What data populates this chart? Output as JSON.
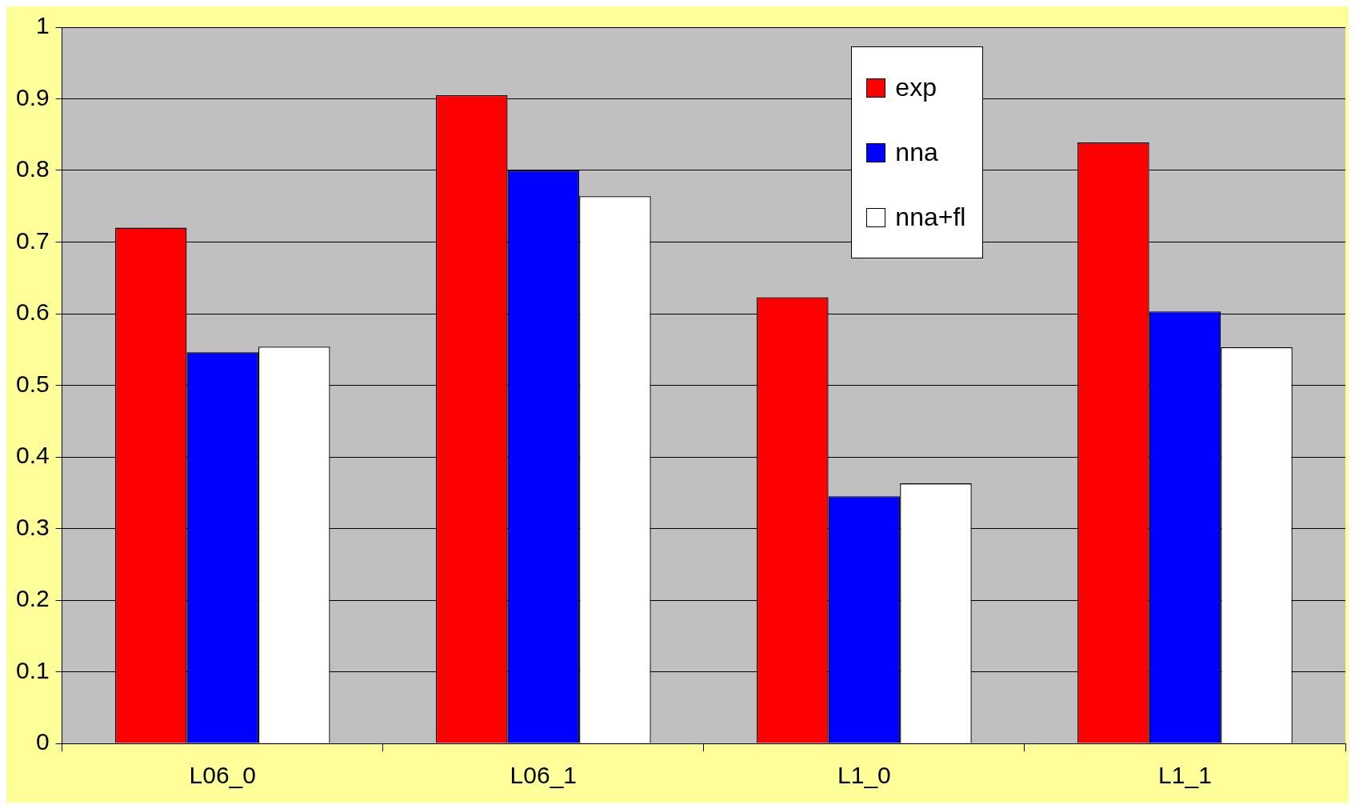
{
  "chart_data": {
    "type": "bar",
    "categories": [
      "L06_0",
      "L06_1",
      "L1_0",
      "L1_1"
    ],
    "series": [
      {
        "name": "exp",
        "color": "#ff0000",
        "values": [
          0.72,
          0.905,
          0.623,
          0.839
        ]
      },
      {
        "name": "nna",
        "color": "#0000ff",
        "values": [
          0.546,
          0.8,
          0.345,
          0.603
        ]
      },
      {
        "name": "nna+fl",
        "color": "#ffffff",
        "values": [
          0.554,
          0.764,
          0.363,
          0.553
        ]
      }
    ],
    "ylim": [
      0,
      1
    ],
    "yticks": [
      0,
      0.1,
      0.2,
      0.3,
      0.4,
      0.5,
      0.6,
      0.7,
      0.8,
      0.9,
      1
    ],
    "grid": "y",
    "legend": "top right"
  }
}
